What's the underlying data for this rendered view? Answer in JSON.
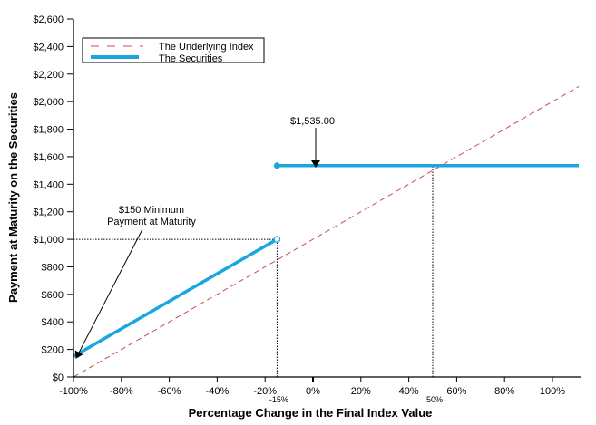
{
  "chart_data": {
    "type": "line",
    "xlabel": "Percentage Change in the Final Index Value",
    "ylabel": "Payment at Maturity on the Securities",
    "xlim": [
      -100,
      111
    ],
    "ylim": [
      0,
      2600
    ],
    "x_ticks": [
      -100,
      -80,
      -60,
      -40,
      -20,
      0,
      20,
      40,
      60,
      80,
      100
    ],
    "x_tick_labels": [
      "-100%",
      "-80%",
      "-60%",
      "-40%",
      "-20%",
      "0%",
      "20%",
      "40%",
      "60%",
      "80%",
      "100%"
    ],
    "y_ticks": [
      0,
      200,
      400,
      600,
      800,
      1000,
      1200,
      1400,
      1600,
      1800,
      2000,
      2200,
      2400,
      2600
    ],
    "y_tick_labels": [
      "$0",
      "$200",
      "$400",
      "$600",
      "$800",
      "$1,000",
      "$1,200",
      "$1,400",
      "$1,600",
      "$1,800",
      "$2,000",
      "$2,200",
      "$2,400",
      "$2,600"
    ],
    "extra_x_labels": [
      {
        "x": -15,
        "label": "-15%"
      },
      {
        "x": 50,
        "label": "50%"
      }
    ],
    "grid": false,
    "legend_position": "top-left",
    "series": [
      {
        "name": "The Underlying Index",
        "style": "dashed",
        "color": "#c0504d",
        "points": [
          [
            -100,
            0
          ],
          [
            111,
            2110
          ]
        ]
      },
      {
        "name": "The Securities",
        "style": "solid",
        "color": "#1aa7e0",
        "segments": [
          {
            "points": [
              [
                -100,
                150
              ],
              [
                -15,
                1000
              ]
            ],
            "end_marker": "open"
          },
          {
            "points": [
              [
                -15,
                1535
              ],
              [
                111,
                1535
              ]
            ],
            "start_marker": "filled"
          }
        ]
      }
    ],
    "reference_lines": [
      {
        "type": "horizontal",
        "y": 1000,
        "x_from": -100,
        "x_to": -15,
        "style": "dotted"
      },
      {
        "type": "vertical",
        "x": -15,
        "y_from": 0,
        "y_to": 1000,
        "style": "dotted"
      },
      {
        "type": "vertical",
        "x": 50,
        "y_from": 0,
        "y_to": 1535,
        "style": "dotted"
      }
    ],
    "annotations": [
      {
        "text": "$1,535.00",
        "points_to": [
          0,
          1535
        ]
      },
      {
        "text_lines": [
          "$150 Minimum",
          "Payment at Maturity"
        ],
        "points_to": [
          -100,
          150
        ]
      }
    ]
  }
}
